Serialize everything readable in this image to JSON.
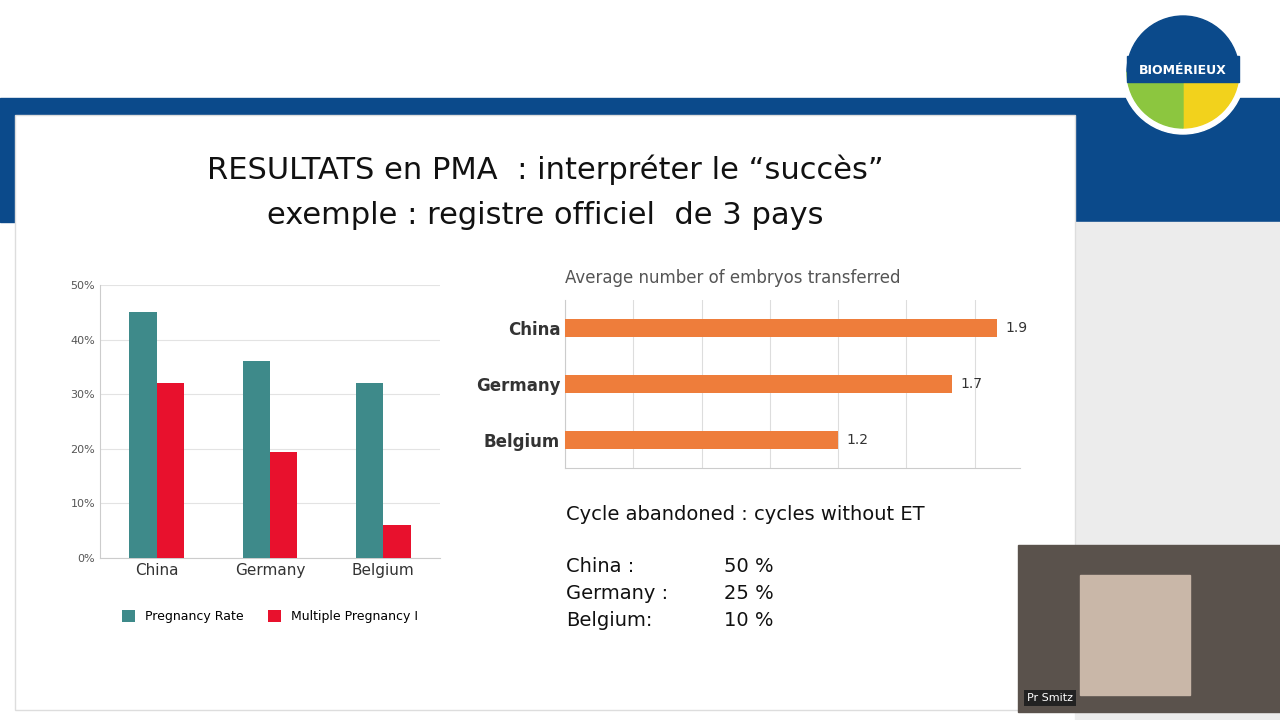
{
  "slide": {
    "title": [
      "RESULTATS en PMA  : interpréter le “succès”",
      "exemple : registre officiel  de 3 pays"
    ],
    "logo": "BIOMÉRIEUX",
    "presenter": "Pr Smitz"
  },
  "chart_data": [
    {
      "type": "bar",
      "categories": [
        "China",
        "Germany",
        "Belgium"
      ],
      "series": [
        {
          "name": "Pregnancy Rate",
          "color": "#3e8a8a",
          "values": [
            45,
            36,
            32
          ]
        },
        {
          "name": "Multiple Pregnancy I",
          "color": "#e8112d",
          "values": [
            32,
            19.5,
            6
          ]
        }
      ],
      "ylim": [
        0,
        50
      ],
      "yticks": [
        {
          "value": 0,
          "label": "0%"
        },
        {
          "value": 10,
          "label": "10%"
        },
        {
          "value": 20,
          "label": "20%"
        },
        {
          "value": 30,
          "label": "30%"
        },
        {
          "value": 40,
          "label": "40%"
        },
        {
          "value": 50,
          "label": "50%"
        }
      ],
      "grid": true,
      "legend": "bottom"
    },
    {
      "type": "bar",
      "orientation": "horizontal",
      "title": "Average number of embryos transferred",
      "categories": [
        "China",
        "Germany",
        "Belgium"
      ],
      "values": [
        1.9,
        1.7,
        1.2
      ],
      "color": "#ee7d3b",
      "xlim": [
        0,
        2.0
      ],
      "xticks": [
        0,
        0.3,
        0.6,
        0.9,
        1.2,
        1.5,
        1.8
      ],
      "grid": true,
      "data_labels": true,
      "tick_labels": "y"
    }
  ],
  "table": {
    "title": "Cycle abandoned : cycles without ET",
    "rows": [
      [
        "China :",
        "50 %"
      ],
      [
        "Germany :",
        "25 %"
      ],
      [
        "Belgium:",
        "10 %"
      ]
    ]
  }
}
